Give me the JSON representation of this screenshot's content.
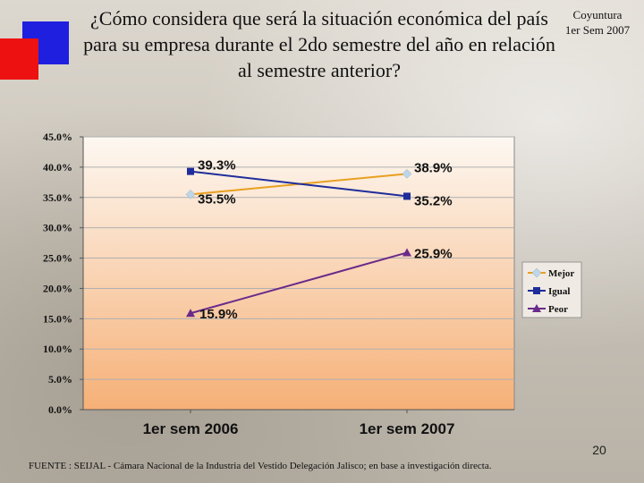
{
  "title": "¿Cómo considera que será la situación económica del país para su empresa durante el 2do semestre del año en relación al semestre anterior?",
  "corner_label": {
    "line1": "Coyuntura",
    "line2": "1er Sem 2007"
  },
  "page_number": "20",
  "source": "FUENTE :  SEIJAL - Cámara Nacional de la Industria del Vestido Delegación Jalisco;  en base a investigación directa.",
  "colors": {
    "mejor": "#e8a020",
    "igual": "#1f2d9a",
    "peor": "#6a2a8a",
    "plot_top": "#fdf8f2",
    "plot_bottom": "#f6b077"
  },
  "chart_data": {
    "type": "line",
    "categories": [
      "1er sem 2006",
      "1er sem 2007"
    ],
    "ylim": [
      0,
      45
    ],
    "yticks": [
      "0.0%",
      "5.0%",
      "10.0%",
      "15.0%",
      "20.0%",
      "25.0%",
      "30.0%",
      "35.0%",
      "40.0%",
      "45.0%"
    ],
    "series": [
      {
        "name": "Mejor",
        "values": [
          35.5,
          38.9
        ],
        "labels": [
          "35.5%",
          "38.9%"
        ],
        "marker": "diamond"
      },
      {
        "name": "Igual",
        "values": [
          39.3,
          35.2
        ],
        "labels": [
          "39.3%",
          "35.2%"
        ],
        "marker": "square"
      },
      {
        "name": "Peor",
        "values": [
          15.9,
          25.9
        ],
        "labels": [
          "15.9%",
          "25.9%"
        ],
        "marker": "triangle"
      }
    ],
    "legend_position": "right"
  }
}
